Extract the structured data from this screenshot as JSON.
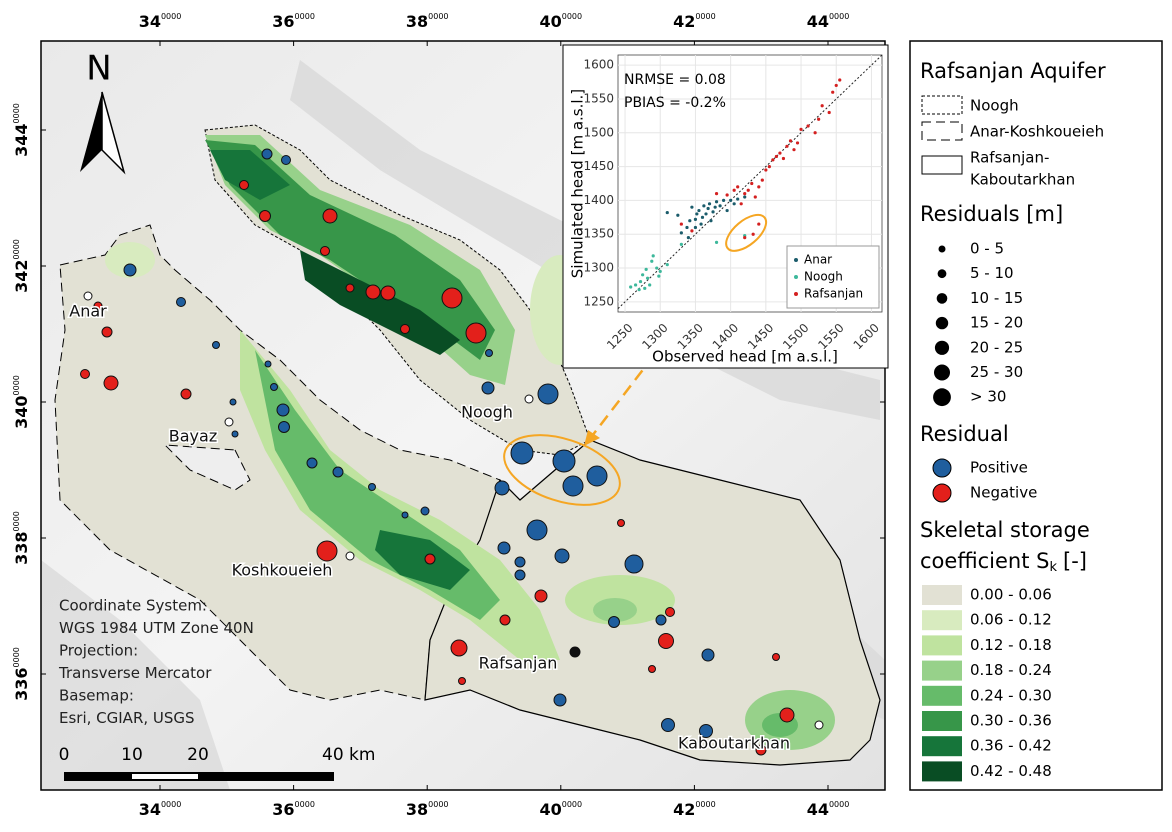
{
  "map": {
    "x_ticks": [
      {
        "major": "34",
        "minor": "0000"
      },
      {
        "major": "36",
        "minor": "0000"
      },
      {
        "major": "38",
        "minor": "0000"
      },
      {
        "major": "40",
        "minor": "0000"
      },
      {
        "major": "42",
        "minor": "0000"
      },
      {
        "major": "44",
        "minor": "0000"
      }
    ],
    "y_ticks": [
      {
        "major": "344",
        "minor": "0000"
      },
      {
        "major": "342",
        "minor": "0000"
      },
      {
        "major": "340",
        "minor": "0000"
      },
      {
        "major": "338",
        "minor": "0000"
      },
      {
        "major": "336",
        "minor": "0000"
      }
    ],
    "north": "N",
    "places": [
      "Anar",
      "Bayaz",
      "Noogh",
      "Koshkoueieh",
      "Rafsanjan",
      "Kaboutarkhan"
    ],
    "info": [
      "Coordinate System:",
      "WGS 1984 UTM Zone 40N",
      "Projection:",
      "Transverse Mercator",
      "Basemap:",
      "Esri, CGIAR, USGS"
    ],
    "scale_labels": [
      "0",
      "10",
      "20",
      "40 km"
    ]
  },
  "chart_data": {
    "type": "scatter",
    "x_label": "Observed head [m a.s.l.]",
    "y_label": "Simulated head [m a.s.l.]",
    "annotations": [
      "NRMSE = 0.08",
      "PBIAS = -0.2%"
    ],
    "xlim": [
      1240,
      1615
    ],
    "ylim": [
      1235,
      1615
    ],
    "xticks": [
      1250,
      1300,
      1350,
      1400,
      1450,
      1500,
      1550,
      1600
    ],
    "yticks": [
      1250,
      1300,
      1350,
      1400,
      1450,
      1500,
      1550,
      1600
    ],
    "grid": true,
    "legend": "bottom-right",
    "series": [
      {
        "name": "Anar",
        "color": "#1b5c6b",
        "x": [
          1310,
          1325,
          1330,
          1338,
          1342,
          1345,
          1350,
          1352,
          1355,
          1358,
          1360,
          1362,
          1365,
          1368,
          1370,
          1372,
          1375,
          1378,
          1380,
          1385,
          1390,
          1395,
          1400,
          1405,
          1410,
          1420,
          1350,
          1340
        ],
        "values": [
          1382,
          1378,
          1352,
          1360,
          1370,
          1390,
          1372,
          1380,
          1385,
          1365,
          1375,
          1392,
          1380,
          1388,
          1395,
          1370,
          1383,
          1390,
          1398,
          1392,
          1400,
          1385,
          1400,
          1395,
          1402,
          1405,
          1360,
          1345
        ]
      },
      {
        "name": "Noogh",
        "color": "#3db89b",
        "x": [
          1258,
          1265,
          1270,
          1272,
          1275,
          1278,
          1280,
          1282,
          1285,
          1288,
          1290,
          1295,
          1298,
          1300,
          1310,
          1330,
          1380,
          1420
        ],
        "values": [
          1272,
          1275,
          1268,
          1280,
          1290,
          1270,
          1298,
          1285,
          1275,
          1310,
          1318,
          1300,
          1288,
          1295,
          1305,
          1335,
          1338,
          1348
        ]
      },
      {
        "name": "Rafsanjan",
        "color": "#d42020",
        "x": [
          1330,
          1345,
          1380,
          1395,
          1405,
          1410,
          1415,
          1420,
          1425,
          1430,
          1435,
          1440,
          1445,
          1450,
          1455,
          1460,
          1465,
          1470,
          1475,
          1480,
          1485,
          1490,
          1495,
          1500,
          1510,
          1520,
          1525,
          1530,
          1540,
          1545,
          1550,
          1555,
          1420,
          1432,
          1440
        ],
        "values": [
          1365,
          1355,
          1410,
          1408,
          1415,
          1420,
          1395,
          1410,
          1415,
          1425,
          1405,
          1420,
          1430,
          1445,
          1450,
          1460,
          1465,
          1470,
          1462,
          1480,
          1488,
          1475,
          1485,
          1505,
          1510,
          1500,
          1520,
          1540,
          1530,
          1560,
          1570,
          1578,
          1345,
          1350,
          1365
        ]
      }
    ]
  },
  "legend": {
    "aquifer_title": "Rafsanjan Aquifer",
    "aquifers": [
      "Noogh",
      "Anar-Koshkoueieh",
      [
        "Rafsanjan-",
        "Kaboutarkhan"
      ]
    ],
    "residuals_title": "Residuals [m]",
    "residual_classes": [
      "0 - 5",
      "5 - 10",
      "10 - 15",
      "15 - 20",
      "20 - 25",
      "25 - 30",
      "> 30"
    ],
    "residual_title": "Residual",
    "residual_signs": [
      {
        "label": "Positive",
        "color": "#1f5e9e"
      },
      {
        "label": "Negative",
        "color": "#e3201b"
      }
    ],
    "sk_title": {
      "line1": "Skeletal storage",
      "line2": "coefficient S",
      "sub": "k",
      "end": "[-]"
    },
    "sk_classes": [
      {
        "label": "0.00 - 0.06",
        "color": "#e2e1d4"
      },
      {
        "label": "0.06 - 0.12",
        "color": "#d8ebbf"
      },
      {
        "label": "0.12 - 0.18",
        "color": "#bfe39f"
      },
      {
        "label": "0.18 - 0.24",
        "color": "#97d18a"
      },
      {
        "label": "0.24 - 0.30",
        "color": "#66bb6a"
      },
      {
        "label": "0.30 - 0.36",
        "color": "#379649"
      },
      {
        "label": "0.36 - 0.42",
        "color": "#16753a"
      },
      {
        "label": "0.42 - 0.48",
        "color": "#094d24"
      }
    ]
  }
}
